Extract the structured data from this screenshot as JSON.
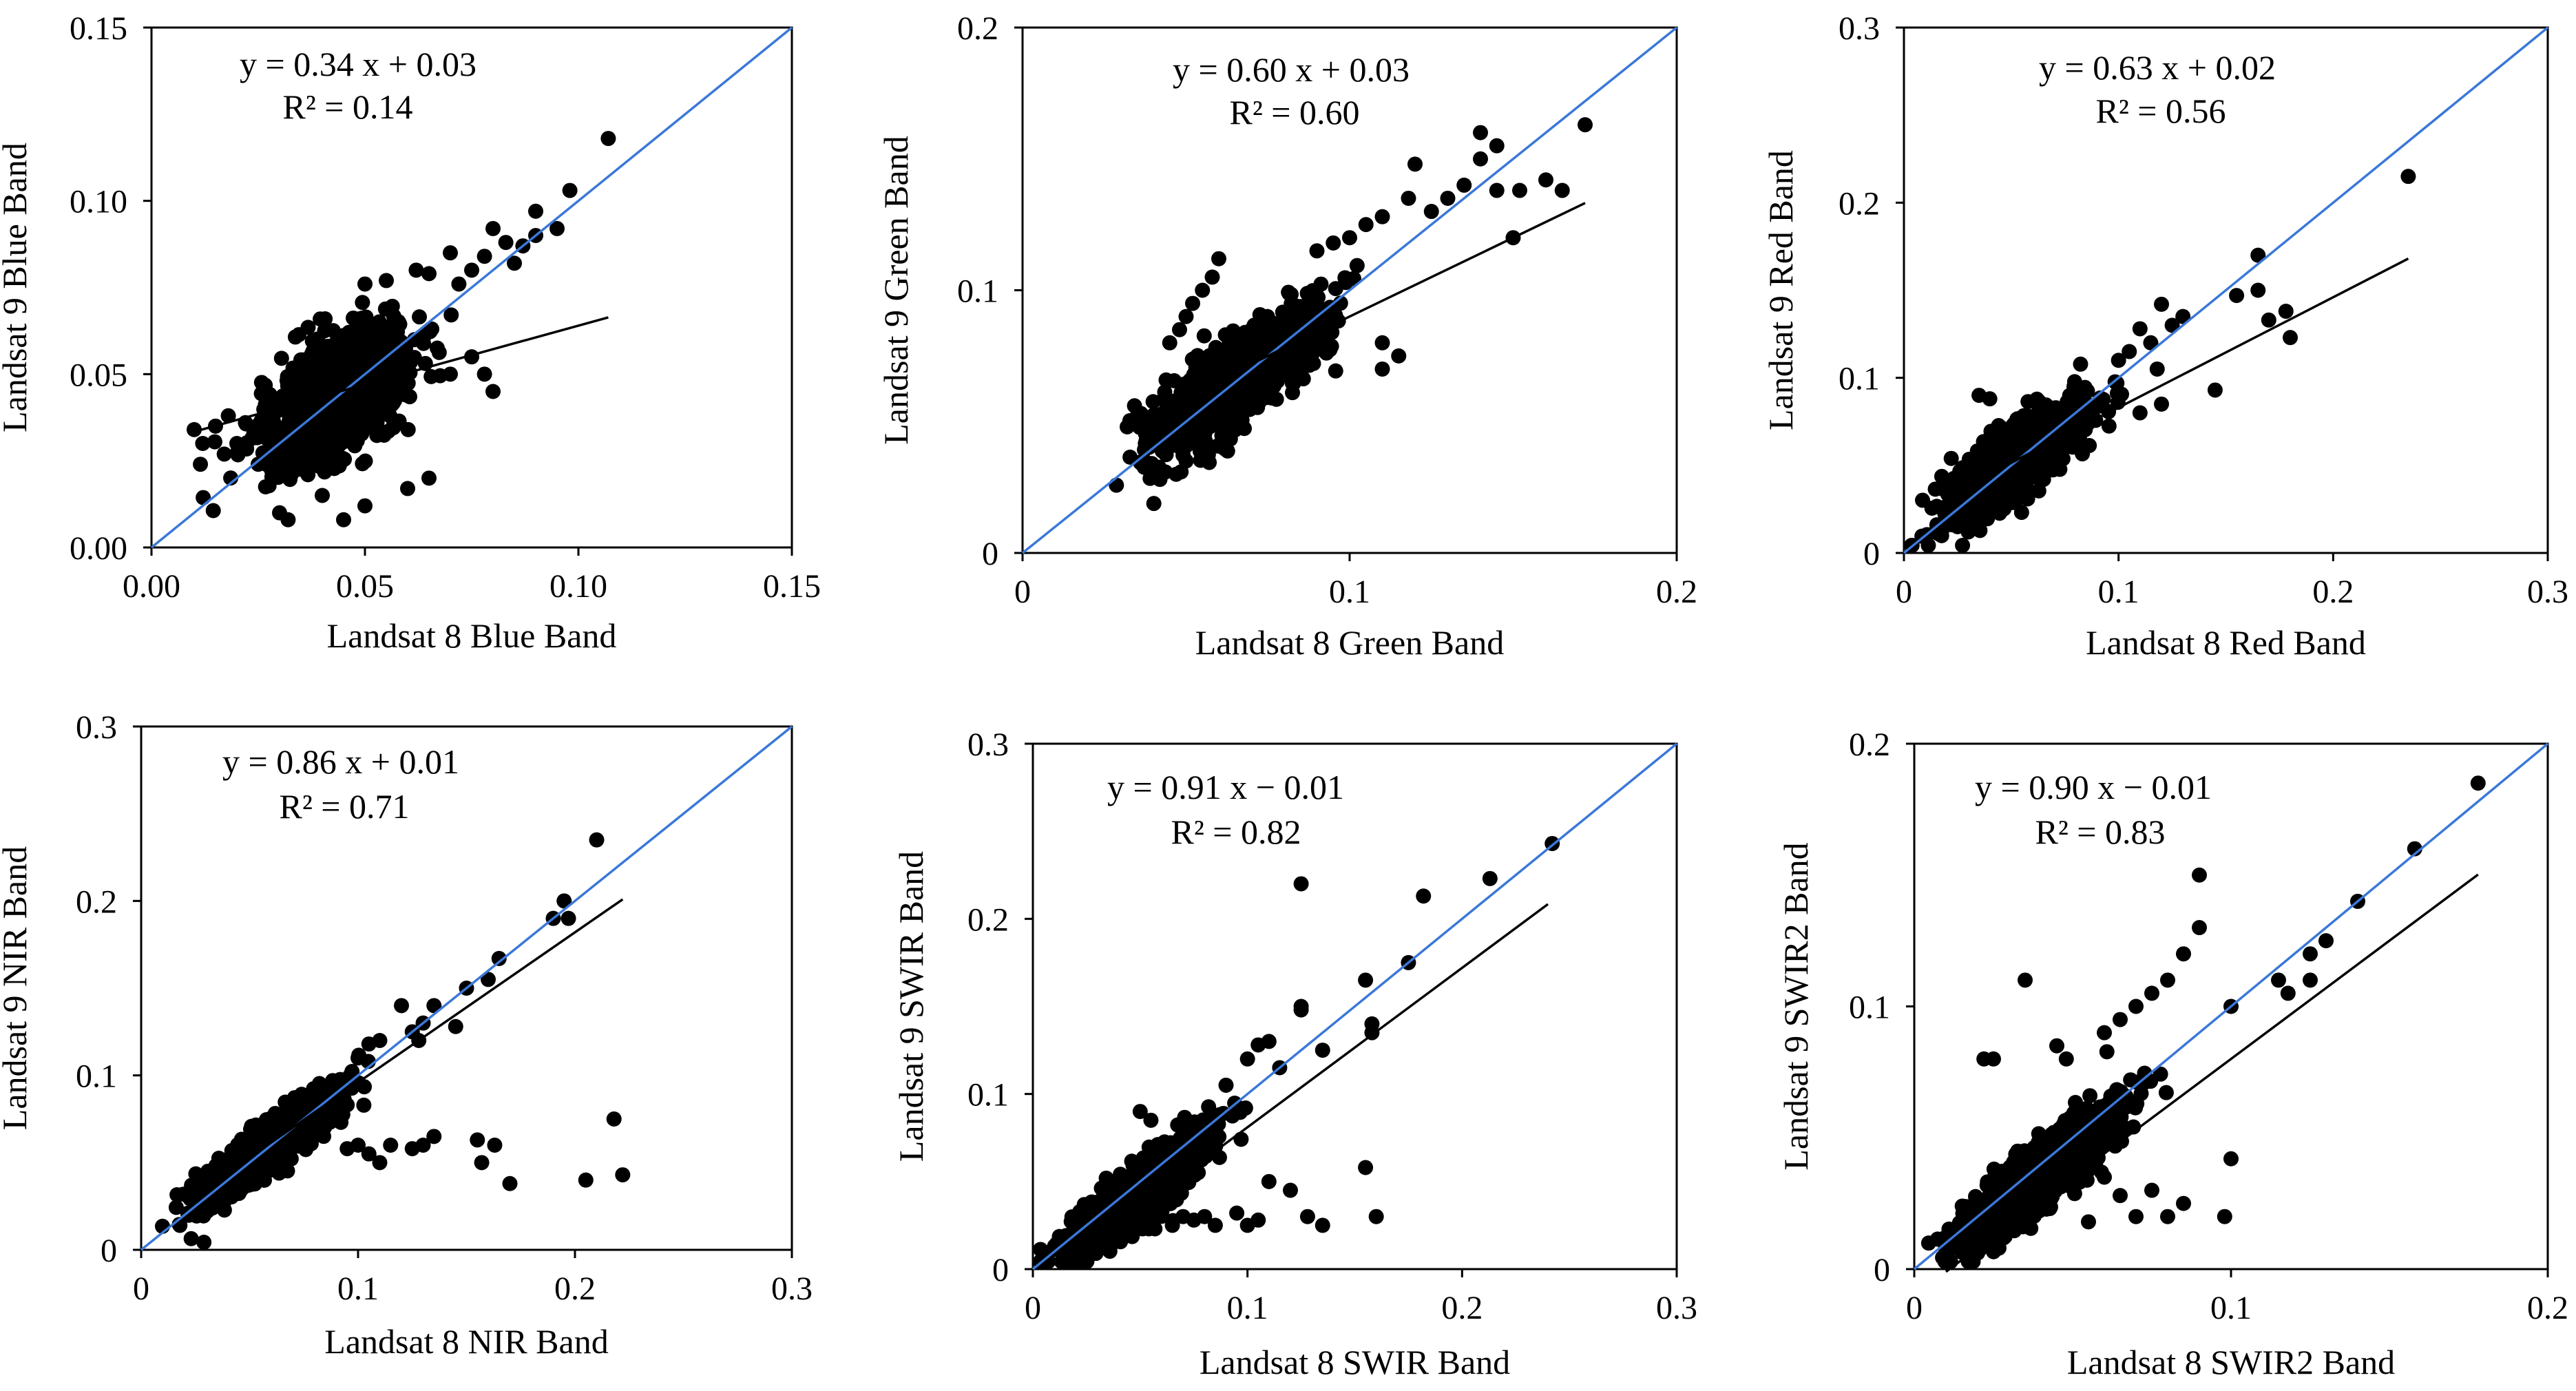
{
  "chart_data": [
    {
      "type": "scatter",
      "title": "",
      "xlabel": "Landsat 8 Blue Band",
      "ylabel": "Landsat 9 Blue Band",
      "xlim": [
        0,
        0.15
      ],
      "ylim": [
        0,
        0.15
      ],
      "xticks": [
        "0.00",
        "0.05",
        "0.10",
        "0.15"
      ],
      "yticks": [
        "0.00",
        "0.05",
        "0.10",
        "0.15"
      ],
      "equation": "y = 0.34 x + 0.03",
      "r2": "R² = 0.14",
      "fit": {
        "slope": 0.34,
        "intercept": 0.03,
        "x_range": [
          0.01,
          0.107
        ]
      },
      "one_to_one": true,
      "cluster": {
        "cx": 0.043,
        "cy": 0.043,
        "sx": 0.0085,
        "sy": 0.0095,
        "rho": 0.55,
        "n": 1100
      },
      "points": [
        [
          0.107,
          0.118
        ],
        [
          0.098,
          0.103
        ],
        [
          0.095,
          0.092
        ],
        [
          0.09,
          0.09
        ],
        [
          0.087,
          0.087
        ],
        [
          0.083,
          0.088
        ],
        [
          0.08,
          0.092
        ],
        [
          0.078,
          0.084
        ],
        [
          0.085,
          0.082
        ],
        [
          0.09,
          0.097
        ],
        [
          0.075,
          0.08
        ],
        [
          0.07,
          0.085
        ],
        [
          0.072,
          0.076
        ],
        [
          0.065,
          0.079
        ],
        [
          0.062,
          0.08
        ],
        [
          0.055,
          0.077
        ],
        [
          0.05,
          0.076
        ],
        [
          0.015,
          0.035
        ],
        [
          0.012,
          0.03
        ],
        [
          0.018,
          0.038
        ],
        [
          0.01,
          0.034
        ],
        [
          0.02,
          0.03
        ],
        [
          0.022,
          0.036
        ],
        [
          0.025,
          0.024
        ],
        [
          0.03,
          0.01
        ],
        [
          0.032,
          0.008
        ],
        [
          0.045,
          0.008
        ],
        [
          0.05,
          0.012
        ],
        [
          0.04,
          0.015
        ],
        [
          0.06,
          0.017
        ],
        [
          0.065,
          0.02
        ],
        [
          0.07,
          0.05
        ],
        [
          0.075,
          0.055
        ],
        [
          0.078,
          0.05
        ],
        [
          0.08,
          0.045
        ]
      ]
    },
    {
      "type": "scatter",
      "title": "",
      "xlabel": "Landsat 8 Green Band",
      "ylabel": "Landsat 9 Green Band",
      "xlim": [
        0,
        0.2
      ],
      "ylim": [
        0,
        0.2
      ],
      "xticks": [
        "0",
        "0.1",
        "0.2"
      ],
      "yticks": [
        "0",
        "0.1",
        "0.2"
      ],
      "equation": "y = 0.60 x + 0.03",
      "r2": "R² = 0.60",
      "fit": {
        "slope": 0.6,
        "intercept": 0.03,
        "x_range": [
          0.03,
          0.172
        ]
      },
      "one_to_one": true,
      "cluster": {
        "cx": 0.065,
        "cy": 0.066,
        "sx": 0.013,
        "sy": 0.013,
        "rho": 0.8,
        "n": 1200
      },
      "points": [
        [
          0.172,
          0.163
        ],
        [
          0.165,
          0.138
        ],
        [
          0.16,
          0.142
        ],
        [
          0.152,
          0.138
        ],
        [
          0.145,
          0.138
        ],
        [
          0.15,
          0.12
        ],
        [
          0.14,
          0.16
        ],
        [
          0.145,
          0.155
        ],
        [
          0.14,
          0.15
        ],
        [
          0.135,
          0.14
        ],
        [
          0.13,
          0.135
        ],
        [
          0.12,
          0.148
        ],
        [
          0.118,
          0.135
        ],
        [
          0.125,
          0.13
        ],
        [
          0.11,
          0.128
        ],
        [
          0.105,
          0.125
        ],
        [
          0.1,
          0.12
        ],
        [
          0.095,
          0.118
        ],
        [
          0.09,
          0.115
        ],
        [
          0.06,
          0.112
        ],
        [
          0.058,
          0.105
        ],
        [
          0.055,
          0.1
        ],
        [
          0.052,
          0.095
        ],
        [
          0.05,
          0.09
        ],
        [
          0.048,
          0.085
        ],
        [
          0.045,
          0.08
        ],
        [
          0.035,
          0.052
        ],
        [
          0.032,
          0.048
        ],
        [
          0.04,
          0.03
        ],
        [
          0.042,
          0.028
        ],
        [
          0.05,
          0.035
        ],
        [
          0.11,
          0.08
        ],
        [
          0.115,
          0.075
        ],
        [
          0.11,
          0.07
        ]
      ]
    },
    {
      "type": "scatter",
      "title": "",
      "xlabel": "Landsat 8 Red Band",
      "ylabel": "Landsat 9 Red Band",
      "xlim": [
        0,
        0.3
      ],
      "ylim": [
        0,
        0.3
      ],
      "xticks": [
        "0",
        "0.1",
        "0.2",
        "0.3"
      ],
      "yticks": [
        "0",
        "0.1",
        "0.2",
        "0.3"
      ],
      "equation": "y = 0.63 x + 0.02",
      "r2": "R² = 0.56",
      "fit": {
        "slope": 0.63,
        "intercept": 0.02,
        "x_range": [
          0.02,
          0.235
        ]
      },
      "one_to_one": true,
      "cluster": {
        "cx": 0.052,
        "cy": 0.053,
        "sx": 0.016,
        "sy": 0.016,
        "rho": 0.82,
        "n": 1200
      },
      "points": [
        [
          0.235,
          0.215
        ],
        [
          0.18,
          0.123
        ],
        [
          0.178,
          0.138
        ],
        [
          0.17,
          0.133
        ],
        [
          0.165,
          0.17
        ],
        [
          0.165,
          0.15
        ],
        [
          0.155,
          0.147
        ],
        [
          0.145,
          0.093
        ],
        [
          0.13,
          0.135
        ],
        [
          0.125,
          0.13
        ],
        [
          0.12,
          0.142
        ],
        [
          0.118,
          0.105
        ],
        [
          0.115,
          0.12
        ],
        [
          0.11,
          0.128
        ],
        [
          0.105,
          0.115
        ],
        [
          0.1,
          0.11
        ],
        [
          0.12,
          0.085
        ],
        [
          0.11,
          0.08
        ],
        [
          0.035,
          0.09
        ],
        [
          0.04,
          0.088
        ],
        [
          0.025,
          0.015
        ],
        [
          0.03,
          0.012
        ],
        [
          0.02,
          0.035
        ]
      ]
    },
    {
      "type": "scatter",
      "title": "",
      "xlabel": "Landsat 8 NIR Band",
      "ylabel": "Landsat 9 NIR Band",
      "xlim": [
        0,
        0.3
      ],
      "ylim": [
        0,
        0.3
      ],
      "xticks": [
        "0",
        "0.1",
        "0.2",
        "0.3"
      ],
      "yticks": [
        "0",
        "0.1",
        "0.2",
        "0.3"
      ],
      "equation": "y = 0.86 x + 0.01",
      "r2": "R² = 0.71",
      "fit": {
        "slope": 0.86,
        "intercept": 0.01,
        "x_range": [
          0.025,
          0.222
        ]
      },
      "one_to_one": true,
      "cluster": {
        "cx": 0.06,
        "cy": 0.06,
        "sx": 0.015,
        "sy": 0.015,
        "rho": 0.9,
        "n": 1300
      },
      "points": [
        [
          0.21,
          0.235
        ],
        [
          0.195,
          0.2
        ],
        [
          0.197,
          0.19
        ],
        [
          0.19,
          0.19
        ],
        [
          0.165,
          0.167
        ],
        [
          0.16,
          0.155
        ],
        [
          0.15,
          0.15
        ],
        [
          0.145,
          0.128
        ],
        [
          0.135,
          0.14
        ],
        [
          0.13,
          0.13
        ],
        [
          0.128,
          0.12
        ],
        [
          0.12,
          0.14
        ],
        [
          0.125,
          0.125
        ],
        [
          0.11,
          0.12
        ],
        [
          0.105,
          0.118
        ],
        [
          0.1,
          0.11
        ],
        [
          0.222,
          0.043
        ],
        [
          0.218,
          0.075
        ],
        [
          0.205,
          0.04
        ],
        [
          0.17,
          0.038
        ],
        [
          0.163,
          0.06
        ],
        [
          0.157,
          0.05
        ],
        [
          0.155,
          0.063
        ],
        [
          0.135,
          0.065
        ],
        [
          0.13,
          0.06
        ],
        [
          0.125,
          0.058
        ],
        [
          0.115,
          0.06
        ],
        [
          0.11,
          0.05
        ],
        [
          0.105,
          0.055
        ],
        [
          0.1,
          0.06
        ],
        [
          0.095,
          0.058
        ]
      ]
    },
    {
      "type": "scatter",
      "title": "",
      "xlabel": "Landsat 8 SWIR Band",
      "ylabel": "Landsat 9 SWIR Band",
      "xlim": [
        0,
        0.3
      ],
      "ylim": [
        0,
        0.3
      ],
      "xticks": [
        "0",
        "0.1",
        "0.2",
        "0.3"
      ],
      "yticks": [
        "0",
        "0.1",
        "0.2",
        "0.3"
      ],
      "equation": "y = 0.91 x − 0.01",
      "r2": "R² = 0.82",
      "fit": {
        "slope": 0.91,
        "intercept": -0.01,
        "x_range": [
          0.012,
          0.24
        ]
      },
      "one_to_one": true,
      "cluster": {
        "cx": 0.048,
        "cy": 0.042,
        "sx": 0.016,
        "sy": 0.017,
        "rho": 0.88,
        "n": 1300
      },
      "points": [
        [
          0.242,
          0.243
        ],
        [
          0.213,
          0.223
        ],
        [
          0.182,
          0.213
        ],
        [
          0.175,
          0.175
        ],
        [
          0.155,
          0.165
        ],
        [
          0.158,
          0.14
        ],
        [
          0.158,
          0.135
        ],
        [
          0.135,
          0.125
        ],
        [
          0.125,
          0.22
        ],
        [
          0.125,
          0.15
        ],
        [
          0.125,
          0.148
        ],
        [
          0.115,
          0.115
        ],
        [
          0.11,
          0.13
        ],
        [
          0.105,
          0.128
        ],
        [
          0.1,
          0.12
        ],
        [
          0.09,
          0.105
        ],
        [
          0.155,
          0.058
        ],
        [
          0.16,
          0.03
        ],
        [
          0.135,
          0.025
        ],
        [
          0.128,
          0.03
        ],
        [
          0.12,
          0.045
        ],
        [
          0.11,
          0.05
        ],
        [
          0.105,
          0.028
        ],
        [
          0.1,
          0.025
        ],
        [
          0.095,
          0.032
        ],
        [
          0.085,
          0.025
        ],
        [
          0.08,
          0.03
        ],
        [
          0.075,
          0.028
        ],
        [
          0.07,
          0.03
        ],
        [
          0.065,
          0.025
        ],
        [
          0.055,
          0.085
        ],
        [
          0.05,
          0.09
        ]
      ]
    },
    {
      "type": "scatter",
      "title": "",
      "xlabel": "Landsat 8 SWIR2 Band",
      "ylabel": "Landsat 9 SWIR2 Band",
      "xlim": [
        0,
        0.2
      ],
      "ylim": [
        0,
        0.2
      ],
      "xticks": [
        "0",
        "0.1",
        "0.2"
      ],
      "yticks": [
        "0",
        "0.1",
        "0.2"
      ],
      "equation": "y = 0.90 x − 0.01",
      "r2": "R² = 0.83",
      "fit": {
        "slope": 0.9,
        "intercept": -0.01,
        "x_range": [
          0.01,
          0.178
        ]
      },
      "one_to_one": true,
      "cluster": {
        "cx": 0.04,
        "cy": 0.036,
        "sx": 0.012,
        "sy": 0.013,
        "rho": 0.87,
        "n": 1300
      },
      "points": [
        [
          0.178,
          0.185
        ],
        [
          0.158,
          0.16
        ],
        [
          0.14,
          0.14
        ],
        [
          0.13,
          0.125
        ],
        [
          0.125,
          0.12
        ],
        [
          0.125,
          0.11
        ],
        [
          0.118,
          0.105
        ],
        [
          0.115,
          0.11
        ],
        [
          0.1,
          0.1
        ],
        [
          0.09,
          0.15
        ],
        [
          0.09,
          0.13
        ],
        [
          0.085,
          0.12
        ],
        [
          0.08,
          0.11
        ],
        [
          0.075,
          0.105
        ],
        [
          0.07,
          0.1
        ],
        [
          0.065,
          0.095
        ],
        [
          0.06,
          0.09
        ],
        [
          0.048,
          0.08
        ],
        [
          0.045,
          0.085
        ],
        [
          0.035,
          0.11
        ],
        [
          0.025,
          0.08
        ],
        [
          0.022,
          0.08
        ],
        [
          0.1,
          0.042
        ],
        [
          0.098,
          0.02
        ],
        [
          0.085,
          0.025
        ],
        [
          0.08,
          0.02
        ],
        [
          0.075,
          0.03
        ],
        [
          0.07,
          0.02
        ],
        [
          0.065,
          0.028
        ],
        [
          0.06,
          0.035
        ],
        [
          0.055,
          0.018
        ]
      ]
    }
  ]
}
